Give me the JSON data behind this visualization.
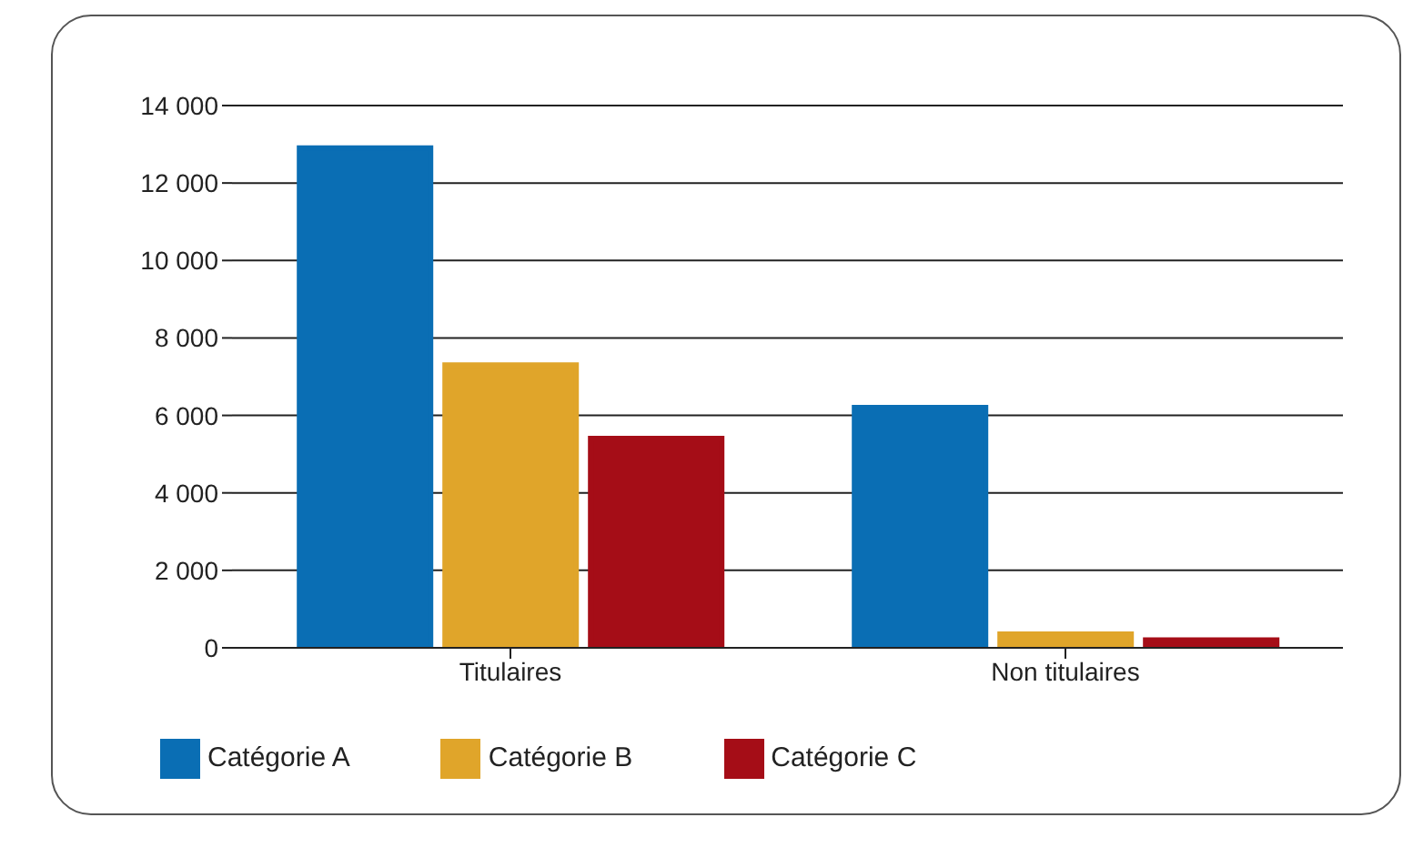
{
  "chart_data": {
    "type": "bar",
    "categories": [
      "Titulaires",
      "Non titulaires"
    ],
    "series": [
      {
        "name": "Catégorie A",
        "color": "#0a6eb4",
        "values": [
          12900,
          6200
        ]
      },
      {
        "name": "Catégorie B",
        "color": "#e0a52a",
        "values": [
          7300,
          350
        ]
      },
      {
        "name": "Catégorie C",
        "color": "#a50d17",
        "values": [
          5400,
          200
        ]
      }
    ],
    "ylim": [
      0,
      14000
    ],
    "yticks": [
      {
        "value": 0,
        "label": "0"
      },
      {
        "value": 2000,
        "label": "2 000"
      },
      {
        "value": 4000,
        "label": "4 000"
      },
      {
        "value": 6000,
        "label": "6 000"
      },
      {
        "value": 8000,
        "label": "8 000"
      },
      {
        "value": 10000,
        "label": "10 000"
      },
      {
        "value": 12000,
        "label": "12 000"
      },
      {
        "value": 14000,
        "label": "14 000"
      }
    ],
    "grid": "y",
    "legend": "bottom left"
  }
}
